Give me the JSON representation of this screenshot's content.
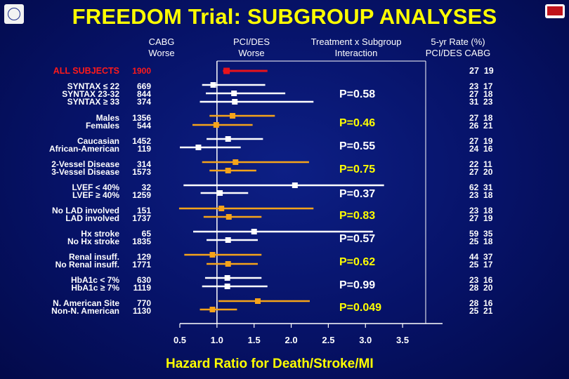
{
  "header": {
    "title": "FREEDOM Trial: SUBGROUP ANALYSES",
    "col_cabg_worse": "CABG\nWorse",
    "col_pci_worse": "PCI/DES\nWorse",
    "col_interaction": "Treatment x Subgroup\nInteraction",
    "col_rate": "5-yr Rate (%)\nPCI/DES CABG"
  },
  "rows": {
    "all": {
      "label": "ALL SUBJECTS",
      "n": "1900",
      "rates": "27  19"
    },
    "syntax": {
      "label": "SYNTAX ≤ 22\nSYNTAX 23-32\nSYNTAX ≥ 33",
      "n": "669\n844\n374",
      "rates": "23  17\n27  18\n31  23",
      "p": "P=0.58"
    },
    "sex": {
      "label": "Males\nFemales",
      "n": "1356\n544",
      "rates": "27  18\n26  21",
      "p": "P=0.46"
    },
    "race": {
      "label": "Caucasian\nAfrican-American",
      "n": "1452\n119",
      "rates": "27  19\n24  16",
      "p": "P=0.55"
    },
    "vessel": {
      "label": "2-Vessel Disease\n3-Vessel Disease",
      "n": "314\n1573",
      "rates": "22  11\n27  20",
      "p": "P=0.75"
    },
    "lvef": {
      "label": "LVEF < 40%\nLVEF ≥ 40%",
      "n": "32\n1259",
      "rates": "62  31\n23  18",
      "p": "P=0.37"
    },
    "lad": {
      "label": "No LAD involved\nLAD involved",
      "n": "151\n1737",
      "rates": "23  18\n27  19",
      "p": "P=0.83"
    },
    "stroke": {
      "label": "Hx stroke\nNo Hx stroke",
      "n": "65\n1835",
      "rates": "59  35\n25  18",
      "p": "P=0.57"
    },
    "renal": {
      "label": "Renal insuff.\nNo Renal insuff.",
      "n": "129\n1771",
      "rates": "44  37\n25  17",
      "p": "P=0.62"
    },
    "hba1c": {
      "label": "HbA1c < 7%\nHbA1c ≥ 7%",
      "n": "630\n1119",
      "rates": "23  16\n28  20",
      "p": "P=0.99"
    },
    "region": {
      "label": "N. American Site\nNon-N. American",
      "n": "770\n1130",
      "rates": "28  16\n25  21",
      "p": "P=0.049"
    }
  },
  "colors": {
    "background": "#061267",
    "title": "#ffff00",
    "all_subjects": "#e8131b",
    "orange": "#f5a31a",
    "white": "#ffffff"
  },
  "chart_data": {
    "type": "forest",
    "xlabel": "Hazard Ratio for Death/Stroke/MI",
    "xlim": [
      0.5,
      3.5
    ],
    "xticks": [
      "0.5",
      "1.0",
      "1.5",
      "2.0",
      "2.5",
      "3.0",
      "3.5"
    ],
    "reference_line": 1.0,
    "series": [
      {
        "group": "all",
        "subgroup": "ALL SUBJECTS",
        "hr": 1.13,
        "lo": 1.08,
        "hi": 1.68,
        "color": "red"
      },
      {
        "group": "syntax",
        "subgroup": "SYNTAX ≤ 22",
        "hr": 0.95,
        "lo": 0.8,
        "hi": 1.65,
        "color": "white"
      },
      {
        "group": "syntax",
        "subgroup": "SYNTAX 23-32",
        "hr": 1.23,
        "lo": 0.85,
        "hi": 1.92,
        "color": "white"
      },
      {
        "group": "syntax",
        "subgroup": "SYNTAX ≥ 33",
        "hr": 1.24,
        "lo": 0.77,
        "hi": 2.3,
        "color": "white"
      },
      {
        "group": "sex",
        "subgroup": "Males",
        "hr": 1.21,
        "lo": 0.9,
        "hi": 1.78,
        "color": "orange"
      },
      {
        "group": "sex",
        "subgroup": "Females",
        "hr": 0.99,
        "lo": 0.67,
        "hi": 1.48,
        "color": "orange"
      },
      {
        "group": "race",
        "subgroup": "Caucasian",
        "hr": 1.15,
        "lo": 0.86,
        "hi": 1.62,
        "color": "white"
      },
      {
        "group": "race",
        "subgroup": "African-American",
        "hr": 0.75,
        "lo": 0.5,
        "hi": 1.32,
        "color": "white"
      },
      {
        "group": "vessel",
        "subgroup": "2-Vessel Disease",
        "hr": 1.25,
        "lo": 0.8,
        "hi": 2.24,
        "color": "orange"
      },
      {
        "group": "vessel",
        "subgroup": "3-Vessel Disease",
        "hr": 1.15,
        "lo": 0.9,
        "hi": 1.53,
        "color": "orange"
      },
      {
        "group": "lvef",
        "subgroup": "LVEF < 40%",
        "hr": 2.05,
        "lo": 0.55,
        "hi": 3.25,
        "color": "white"
      },
      {
        "group": "lvef",
        "subgroup": "LVEF ≥ 40%",
        "hr": 1.04,
        "lo": 0.78,
        "hi": 1.42,
        "color": "white"
      },
      {
        "group": "lad",
        "subgroup": "No LAD involved",
        "hr": 1.06,
        "lo": 0.49,
        "hi": 2.3,
        "color": "orange"
      },
      {
        "group": "lad",
        "subgroup": "LAD involved",
        "hr": 1.16,
        "lo": 0.82,
        "hi": 1.6,
        "color": "orange"
      },
      {
        "group": "stroke",
        "subgroup": "Hx stroke",
        "hr": 1.5,
        "lo": 0.68,
        "hi": 3.1,
        "color": "white"
      },
      {
        "group": "stroke",
        "subgroup": "No Hx stroke",
        "hr": 1.15,
        "lo": 0.86,
        "hi": 1.55,
        "color": "white"
      },
      {
        "group": "renal",
        "subgroup": "Renal insuff.",
        "hr": 0.94,
        "lo": 0.56,
        "hi": 1.6,
        "color": "orange"
      },
      {
        "group": "renal",
        "subgroup": "No Renal insuff.",
        "hr": 1.15,
        "lo": 0.86,
        "hi": 1.55,
        "color": "orange"
      },
      {
        "group": "hba1c",
        "subgroup": "HbA1c < 7%",
        "hr": 1.14,
        "lo": 0.84,
        "hi": 1.6,
        "color": "white"
      },
      {
        "group": "hba1c",
        "subgroup": "HbA1c ≥ 7%",
        "hr": 1.14,
        "lo": 0.8,
        "hi": 1.68,
        "color": "white"
      },
      {
        "group": "region",
        "subgroup": "N. American Site",
        "hr": 1.55,
        "lo": 1.02,
        "hi": 2.25,
        "color": "orange"
      },
      {
        "group": "region",
        "subgroup": "Non-N. American",
        "hr": 0.94,
        "lo": 0.77,
        "hi": 1.27,
        "color": "orange"
      }
    ]
  }
}
